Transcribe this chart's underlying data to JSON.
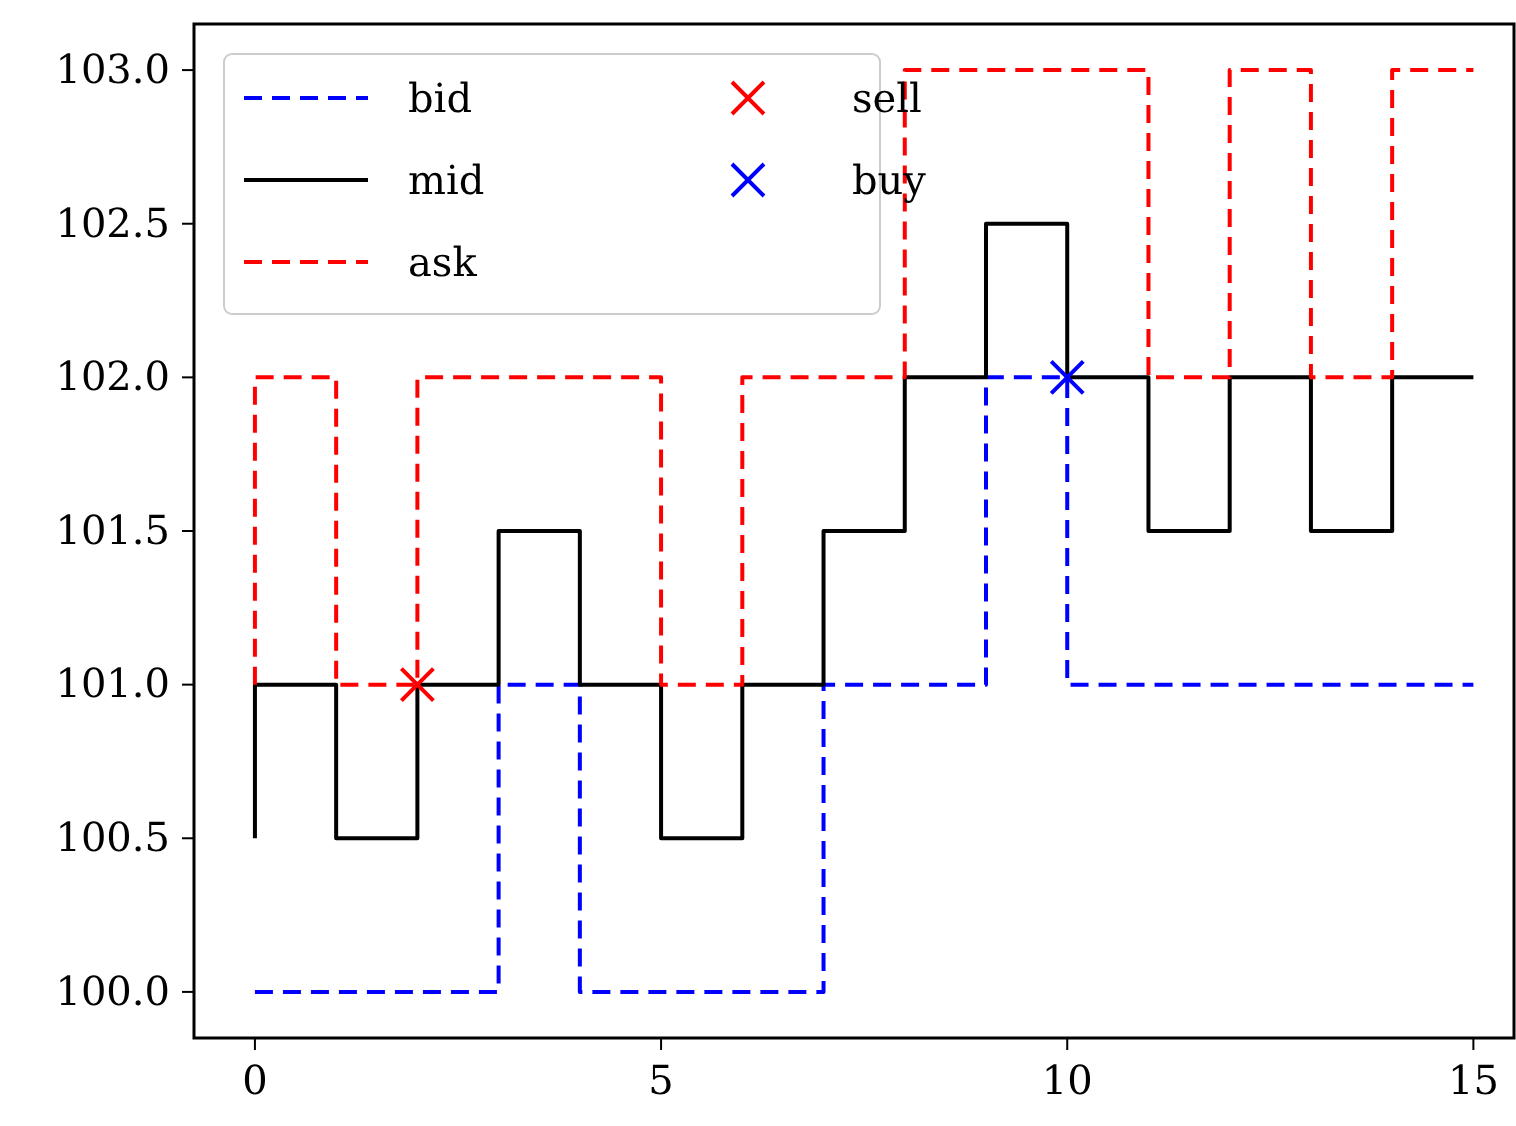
{
  "chart_data": {
    "type": "step",
    "x": [
      0,
      1,
      2,
      3,
      4,
      5,
      6,
      7,
      8,
      9,
      10,
      11,
      12,
      13,
      14,
      15
    ],
    "series": [
      {
        "name": "bid",
        "color": "#0000ff",
        "line_style": "dashed",
        "values": [
          100,
          100,
          100,
          100,
          101,
          100,
          100,
          100,
          101,
          101,
          102,
          101,
          101,
          101,
          101,
          101
        ]
      },
      {
        "name": "mid",
        "color": "#000000",
        "line_style": "solid",
        "values": [
          100.5,
          101,
          100.5,
          101,
          101.5,
          101,
          100.5,
          101,
          101.5,
          102,
          102.5,
          102,
          101.5,
          102,
          101.5,
          102
        ]
      },
      {
        "name": "ask",
        "color": "#ff0000",
        "line_style": "dashed",
        "values": [
          101,
          102,
          101,
          102,
          102,
          102,
          101,
          102,
          102,
          103,
          103,
          103,
          102,
          103,
          102,
          103
        ]
      },
      {
        "name": "sell",
        "type": "scatter",
        "marker": "cross",
        "color": "#ff0000",
        "x": [
          2
        ],
        "values": [
          101
        ]
      },
      {
        "name": "buy",
        "type": "scatter",
        "marker": "cross",
        "color": "#0000ff",
        "x": [
          10
        ],
        "values": [
          102
        ]
      }
    ],
    "xlim": [
      -0.75,
      15.5
    ],
    "xticks": [
      0,
      5,
      10,
      15
    ],
    "ylim": [
      99.85,
      103.15
    ],
    "yticks": [
      {
        "value": 100,
        "label": "100.0"
      },
      {
        "value": 100.5,
        "label": "100.5"
      },
      {
        "value": 101,
        "label": "101.0"
      },
      {
        "value": 101.5,
        "label": "101.5"
      },
      {
        "value": 102,
        "label": "102.0"
      },
      {
        "value": 102.5,
        "label": "102.5"
      },
      {
        "value": 103,
        "label": "103.0"
      }
    ],
    "grid": false,
    "legend": "top left"
  }
}
